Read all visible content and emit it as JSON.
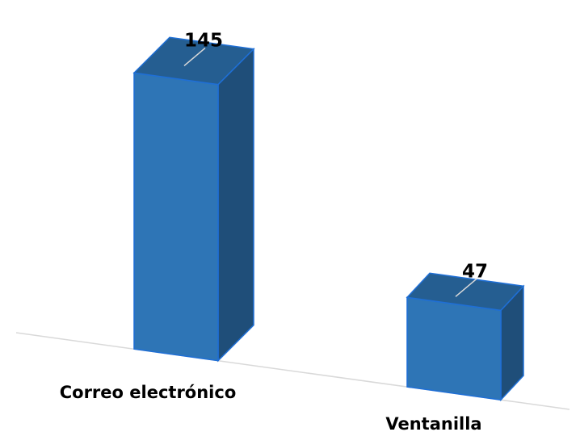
{
  "chart_data": {
    "type": "bar",
    "style": "3d-column",
    "categories": [
      "Correo electrónico",
      "Ventanilla"
    ],
    "values": [
      145,
      47
    ],
    "title": "",
    "xlabel": "",
    "ylabel": "",
    "ylim": [
      0,
      145
    ],
    "grid": false,
    "legend": "none",
    "data_labels": true,
    "colors": {
      "front": "#2e75b6",
      "side": "#1f4e79",
      "top": "#255e91",
      "edge": "#1f6fd6",
      "leader": "#d9d9d9",
      "floor": "#d9d9d9"
    }
  }
}
